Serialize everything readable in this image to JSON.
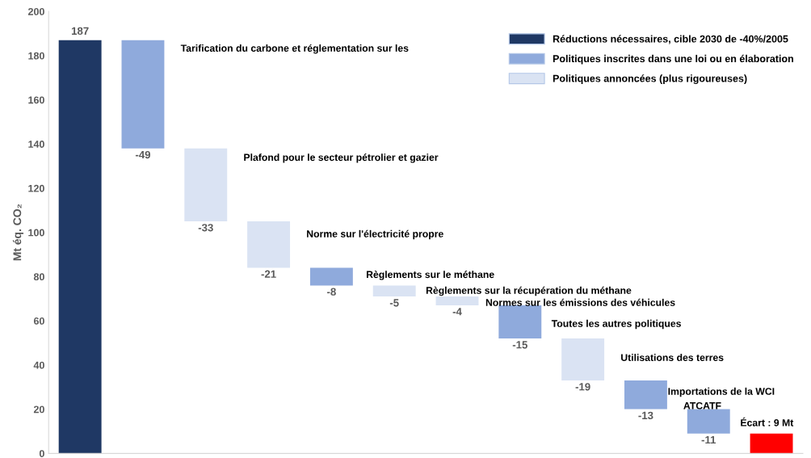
{
  "chart_data": {
    "type": "bar",
    "ylabel": "Mt éq. CO₂",
    "categories": [
      null,
      null,
      null,
      null,
      null,
      null,
      null,
      null,
      null,
      null,
      null,
      null
    ],
    "series": [
      {
        "name": "Réductions nécessaires, cible 2030 de -40%/2005",
        "color": "#1f3864",
        "base": [
          0,
          null,
          null,
          null,
          null,
          null,
          null,
          null,
          null,
          null,
          null,
          null
        ],
        "values": [
          187,
          null,
          null,
          null,
          null,
          null,
          null,
          null,
          null,
          null,
          null,
          null
        ],
        "value_labels": [
          "187",
          null,
          null,
          null,
          null,
          null,
          null,
          null,
          null,
          null,
          null,
          null
        ]
      },
      {
        "name": "Politiques inscrites dans une loi ou en élaboration",
        "color": "#8faadc",
        "base": [
          null,
          187,
          null,
          null,
          84,
          null,
          null,
          67,
          null,
          33,
          20,
          null
        ],
        "values": [
          null,
          -49,
          null,
          null,
          -8,
          null,
          null,
          -15,
          null,
          -13,
          -11,
          null
        ],
        "value_labels": [
          null,
          "-49",
          null,
          null,
          "-8",
          null,
          null,
          "-15",
          null,
          "-13",
          "-11",
          null
        ]
      },
      {
        "name": "Politiques annoncées (plus rigoureuses)",
        "color": "#dae3f3",
        "base": [
          null,
          null,
          138,
          105,
          null,
          76,
          71,
          null,
          52,
          null,
          null,
          null
        ],
        "values": [
          null,
          null,
          -33,
          -21,
          null,
          -5,
          -4,
          null,
          -19,
          null,
          null,
          null
        ],
        "value_labels": [
          null,
          null,
          "-33",
          "-21",
          null,
          "-5",
          "-4",
          null,
          "-19",
          null,
          null,
          null
        ]
      },
      {
        "color": "#ff0000",
        "base": [
          null,
          null,
          null,
          null,
          null,
          null,
          null,
          null,
          null,
          null,
          null,
          0
        ],
        "values": [
          null,
          null,
          null,
          null,
          null,
          null,
          null,
          null,
          null,
          null,
          null,
          9
        ]
      }
    ],
    "annotations": [
      "Tarification du carbone et réglementation sur les",
      "Plafond pour le secteur pétrolier et gazier",
      "Norme sur l'électricité propre",
      "Règlements sur le méthane",
      "Règlements sur la récupération du méthane",
      "Normes sur les émissions des véhicules",
      "Toutes les autres politiques",
      "Utilisations des terres",
      "Importations de la WCI",
      "ATCATF",
      "Écart : 9 Mt"
    ],
    "ylim": [
      0,
      200
    ],
    "yticks": [
      0,
      20,
      40,
      60,
      80,
      100,
      120,
      140,
      160,
      180,
      200
    ],
    "grid": false,
    "legend": "top right"
  }
}
